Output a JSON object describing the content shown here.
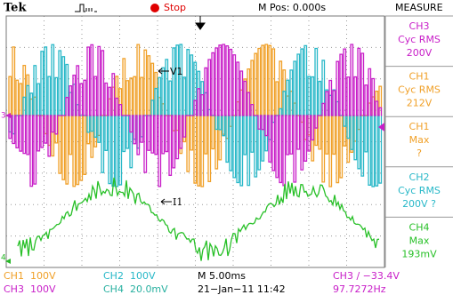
{
  "header": {
    "brand": "Tek",
    "state": "Stop",
    "position": "M Pos: 0.000s",
    "menu": "MEASURE"
  },
  "measurements": [
    {
      "source": "CH3",
      "type": "Cyc RMS",
      "value": "200V"
    },
    {
      "source": "CH1",
      "type": "Cyc RMS",
      "value": "212V"
    },
    {
      "source": "CH1",
      "type": "Max",
      "value": "?"
    },
    {
      "source": "CH2",
      "type": "Cyc RMS",
      "value": "200V ?"
    },
    {
      "source": "CH4",
      "type": "Max",
      "value": "193mV"
    }
  ],
  "screen": {
    "voltage_label": "V1",
    "current_label": "I1",
    "ch3_marker": "3",
    "ch4_marker": "4"
  },
  "status": {
    "ch1_scale": "CH1  100V",
    "ch2_scale": "CH2  100V",
    "timebase": "M 5.00ms",
    "trigger": "CH3 ∕ −33.4V",
    "ch3_scale": "CH3  100V",
    "ch4_scale": "CH4  20.0mV",
    "date": "21−Jan−11 11:42",
    "frequency": "97.7272Hz"
  }
}
